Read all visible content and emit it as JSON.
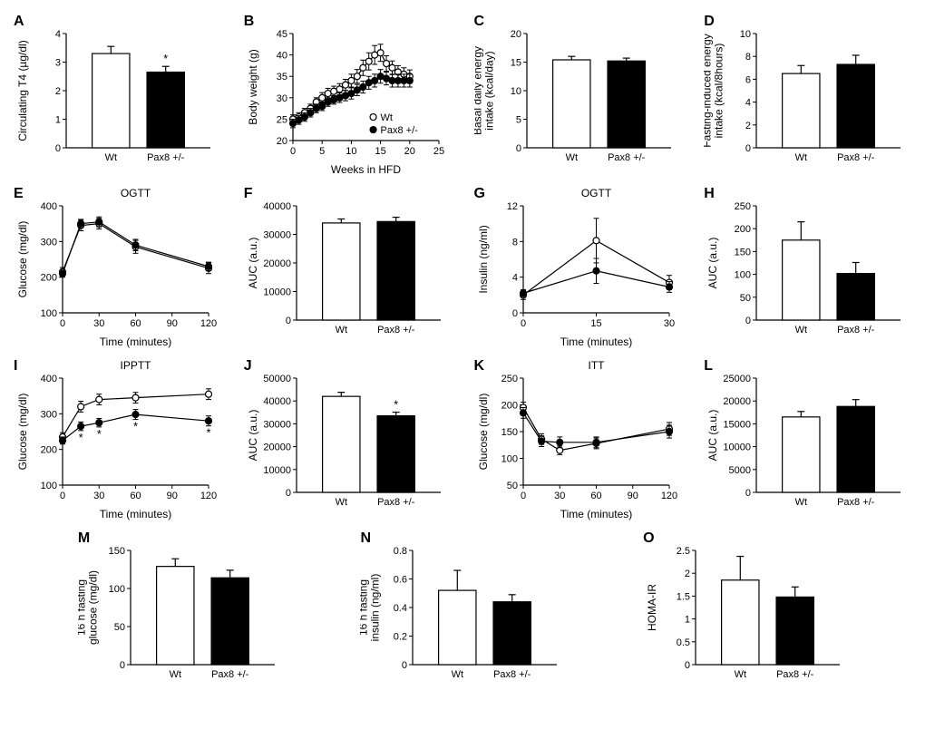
{
  "colors": {
    "wt_fill": "#ffffff",
    "pax_fill": "#000000",
    "stroke": "#000000",
    "bg": "#ffffff"
  },
  "groups": {
    "wt": "Wt",
    "pax": "Pax8 +/-"
  },
  "panels": {
    "A": {
      "label": "A",
      "type": "bar",
      "ylabel": "Circulating T4 (µg/dl)",
      "ylim": [
        0,
        4
      ],
      "yticks": [
        0,
        1,
        2,
        3,
        4
      ],
      "wt": 3.3,
      "wt_err": 0.25,
      "pax": 2.65,
      "pax_err": 0.2,
      "sig": "*"
    },
    "B": {
      "label": "B",
      "type": "line",
      "ylabel": "Body weight (g)",
      "xlabel": "Weeks in HFD",
      "title": "",
      "ylim": [
        20,
        45
      ],
      "yticks": [
        20,
        25,
        30,
        35,
        40,
        45
      ],
      "xlim": [
        0,
        25
      ],
      "xticks": [
        0,
        5,
        10,
        15,
        20,
        25
      ],
      "wt_x": [
        0,
        1,
        2,
        3,
        4,
        5,
        6,
        7,
        8,
        9,
        10,
        11,
        12,
        13,
        14,
        15,
        16,
        17,
        18,
        19,
        20
      ],
      "wt_y": [
        25,
        25.5,
        26.5,
        27.5,
        29,
        30,
        31,
        31.5,
        32,
        33,
        34,
        35,
        37,
        38.5,
        40,
        40.5,
        38,
        37,
        36,
        35.5,
        35
      ],
      "wt_err": [
        1,
        1,
        1,
        1,
        1,
        1.2,
        1.2,
        1.2,
        1.3,
        1.3,
        1.5,
        1.6,
        1.8,
        2,
        2.2,
        2,
        1.8,
        1.6,
        1.5,
        1.5,
        1.5
      ],
      "pax_x": [
        0,
        1,
        2,
        3,
        4,
        5,
        6,
        7,
        8,
        9,
        10,
        11,
        12,
        13,
        14,
        15,
        16,
        17,
        18,
        19,
        20
      ],
      "pax_y": [
        24,
        24.8,
        25.5,
        26.5,
        27.5,
        28,
        29,
        29.5,
        30,
        30.5,
        31,
        31.8,
        32.5,
        33.5,
        34,
        35,
        34.5,
        34,
        34,
        34,
        34
      ],
      "pax_err": [
        1,
        1,
        1,
        1,
        1,
        1,
        1,
        1,
        1.1,
        1.2,
        1.3,
        1.3,
        1.4,
        1.5,
        1.5,
        1.6,
        1.5,
        1.5,
        1.5,
        1.5,
        1.5
      ],
      "legend": true
    },
    "C": {
      "label": "C",
      "type": "bar",
      "ylabel": "Basal daily energy\nintake (kcal/day)",
      "ylim": [
        0,
        20
      ],
      "yticks": [
        0,
        5,
        10,
        15,
        20
      ],
      "wt": 15.4,
      "wt_err": 0.6,
      "pax": 15.2,
      "pax_err": 0.5
    },
    "D": {
      "label": "D",
      "type": "bar",
      "ylabel": "Fasting-induced energy\nintake (kcal/8hours)",
      "ylim": [
        0,
        10
      ],
      "yticks": [
        0,
        2,
        4,
        6,
        8,
        10
      ],
      "wt": 6.5,
      "wt_err": 0.7,
      "pax": 7.3,
      "pax_err": 0.8
    },
    "E": {
      "label": "E",
      "type": "line",
      "title": "OGTT",
      "ylabel": "Glucose (mg/dl)",
      "xlabel": "Time (minutes)",
      "ylim": [
        100,
        400
      ],
      "yticks": [
        100,
        200,
        300,
        400
      ],
      "xlim": [
        0,
        120
      ],
      "xticks": [
        0,
        30,
        60,
        90,
        120
      ],
      "wt_x": [
        0,
        15,
        30,
        60,
        120
      ],
      "wt_y": [
        215,
        345,
        350,
        285,
        225
      ],
      "wt_err": [
        12,
        15,
        15,
        18,
        15
      ],
      "pax_x": [
        0,
        15,
        30,
        60,
        120
      ],
      "pax_y": [
        210,
        350,
        355,
        290,
        230
      ],
      "pax_err": [
        10,
        12,
        14,
        16,
        12
      ]
    },
    "F": {
      "label": "F",
      "type": "bar",
      "ylabel": "AUC (a.u.)",
      "ylim": [
        0,
        40000
      ],
      "yticks": [
        0,
        10000,
        20000,
        30000,
        40000
      ],
      "wt": 34000,
      "wt_err": 1400,
      "pax": 34500,
      "pax_err": 1500
    },
    "G": {
      "label": "G",
      "type": "line",
      "title": "OGTT",
      "ylabel": "Insulin (ng/ml)",
      "xlabel": "Time (minutes)",
      "ylim": [
        0,
        12
      ],
      "yticks": [
        0,
        4,
        8,
        12
      ],
      "xlim": [
        0,
        30
      ],
      "xticks": [
        0,
        15,
        30
      ],
      "wt_x": [
        0,
        15,
        30
      ],
      "wt_y": [
        2.0,
        8.1,
        3.4
      ],
      "wt_err": [
        0.5,
        2.5,
        0.8
      ],
      "pax_x": [
        0,
        15,
        30
      ],
      "pax_y": [
        2.2,
        4.7,
        2.9
      ],
      "pax_err": [
        0.4,
        1.4,
        0.6
      ]
    },
    "H": {
      "label": "H",
      "type": "bar",
      "ylabel": "AUC (a.u.)",
      "ylim": [
        0,
        250
      ],
      "yticks": [
        0,
        50,
        100,
        150,
        200,
        250
      ],
      "wt": 175,
      "wt_err": 40,
      "pax": 102,
      "pax_err": 24
    },
    "I": {
      "label": "I",
      "type": "line",
      "title": "IPPTT",
      "ylabel": "Glucose (mg/dl)",
      "xlabel": "Time (minutes)",
      "ylim": [
        100,
        400
      ],
      "yticks": [
        100,
        200,
        300,
        400
      ],
      "xlim": [
        0,
        120
      ],
      "xticks": [
        0,
        30,
        60,
        90,
        120
      ],
      "wt_x": [
        0,
        15,
        30,
        60,
        120
      ],
      "wt_y": [
        235,
        320,
        340,
        345,
        355
      ],
      "wt_err": [
        12,
        15,
        15,
        15,
        15
      ],
      "pax_x": [
        0,
        15,
        30,
        60,
        120
      ],
      "pax_y": [
        225,
        265,
        275,
        298,
        280
      ],
      "pax_err": [
        10,
        12,
        12,
        14,
        14
      ],
      "sig_x": [
        15,
        30,
        60,
        120
      ]
    },
    "J": {
      "label": "J",
      "type": "bar",
      "ylabel": "AUC (a.u.)",
      "ylim": [
        0,
        50000
      ],
      "yticks": [
        0,
        10000,
        20000,
        30000,
        40000,
        50000
      ],
      "wt": 42000,
      "wt_err": 1800,
      "pax": 33500,
      "pax_err": 1600,
      "sig": "*"
    },
    "K": {
      "label": "K",
      "type": "line",
      "title": "ITT",
      "ylabel": "Glucose (mg/dl)",
      "xlabel": "Time (minutes)",
      "ylim": [
        50,
        250
      ],
      "yticks": [
        50,
        100,
        150,
        200,
        250
      ],
      "xlim": [
        0,
        120
      ],
      "xticks": [
        0,
        30,
        60,
        90,
        120
      ],
      "wt_x": [
        0,
        15,
        30,
        60,
        120
      ],
      "wt_y": [
        195,
        136,
        115,
        128,
        155
      ],
      "wt_err": [
        10,
        10,
        8,
        10,
        12
      ],
      "pax_x": [
        0,
        15,
        30,
        60,
        120
      ],
      "pax_y": [
        185,
        132,
        130,
        130,
        150
      ],
      "pax_err": [
        10,
        10,
        10,
        10,
        12
      ]
    },
    "L": {
      "label": "L",
      "type": "bar",
      "ylabel": "AUC (a.u.)",
      "ylim": [
        0,
        25000
      ],
      "yticks": [
        0,
        5000,
        10000,
        15000,
        20000,
        25000
      ],
      "wt": 16500,
      "wt_err": 1200,
      "pax": 18800,
      "pax_err": 1500
    },
    "M": {
      "label": "M",
      "type": "bar",
      "ylabel": "16 h fasting\nglucose (mg/dl)",
      "ylim": [
        0,
        150
      ],
      "yticks": [
        0,
        50,
        100,
        150
      ],
      "wt": 129,
      "wt_err": 10,
      "pax": 114,
      "pax_err": 10
    },
    "N": {
      "label": "N",
      "type": "bar",
      "ylabel": "16 h fasting\ninsulin (ng/ml)",
      "ylim": [
        0,
        0.8
      ],
      "yticks": [
        0,
        0.2,
        0.4,
        0.6,
        0.8
      ],
      "wt": 0.52,
      "wt_err": 0.14,
      "pax": 0.44,
      "pax_err": 0.05
    },
    "O": {
      "label": "O",
      "type": "bar",
      "ylabel": "HOMA-IR",
      "ylim": [
        0,
        2.5
      ],
      "yticks": [
        0,
        0.5,
        1.0,
        1.5,
        2.0,
        2.5
      ],
      "wt": 1.85,
      "wt_err": 0.52,
      "pax": 1.48,
      "pax_err": 0.22
    }
  }
}
